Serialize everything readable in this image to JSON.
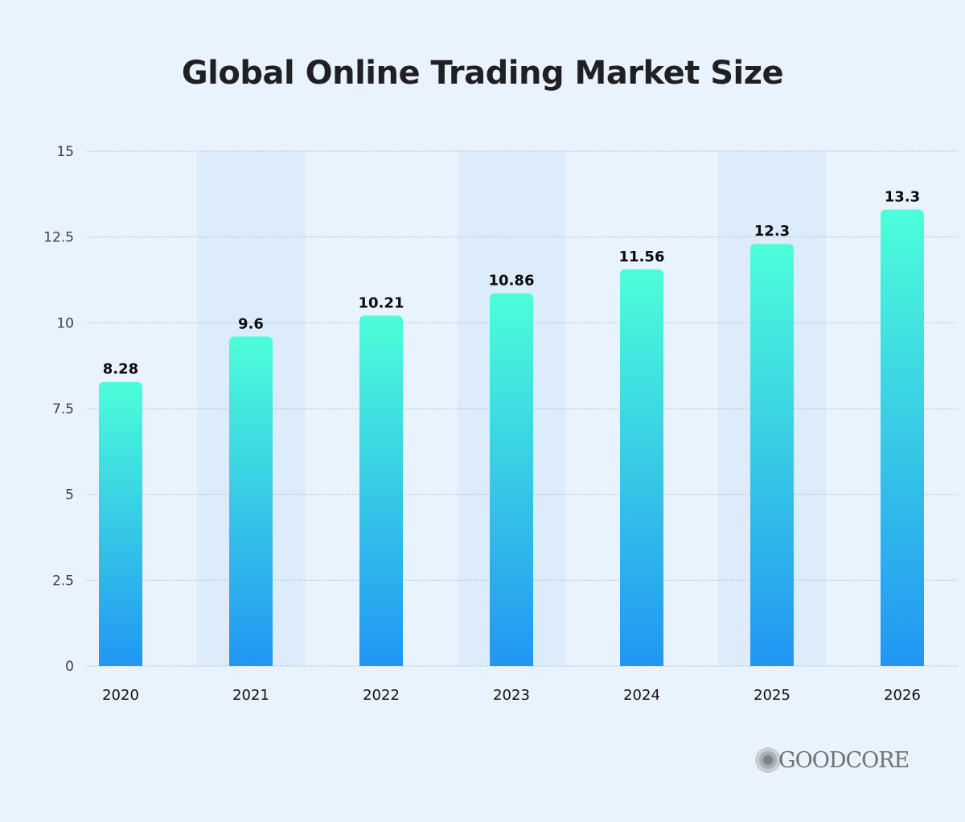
{
  "chart_data": {
    "type": "bar",
    "title": "Global Online Trading Market Size",
    "xlabel": "",
    "ylabel": "",
    "categories": [
      "2020",
      "2021",
      "2022",
      "2023",
      "2024",
      "2025",
      "2026"
    ],
    "values": [
      8.28,
      9.6,
      10.21,
      10.86,
      11.56,
      12.3,
      13.3
    ],
    "value_labels": [
      "8.28",
      "9.6",
      "10.21",
      "10.86",
      "11.56",
      "12.3",
      "13.3"
    ],
    "ylim": [
      0,
      15
    ],
    "yticks": [
      0,
      2.5,
      5,
      7.5,
      10,
      12.5,
      15
    ],
    "ytick_labels": [
      "0",
      "2.5",
      "5",
      "7.5",
      "10",
      "12.5",
      "15"
    ],
    "grid": true,
    "bar_gradient": [
      "#4dfed9",
      "#2196f3"
    ],
    "band_color": "#ddecfa",
    "background": "#e9f3fd"
  },
  "logo": {
    "text": "GOODCORE"
  }
}
